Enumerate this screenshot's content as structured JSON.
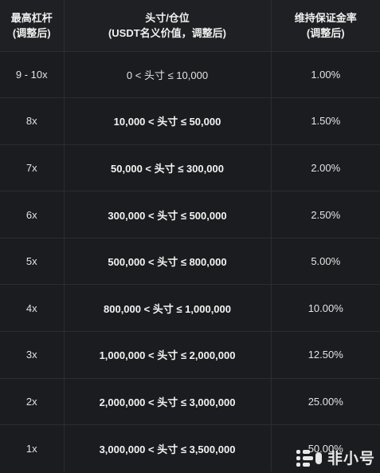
{
  "header": {
    "col1_line1": "最高杠杆",
    "col1_line2": "(调整后)",
    "col2_line1": "头寸/仓位",
    "col2_line2": "(USDT名义价值，调整后)",
    "col3_line1": "维持保证金率",
    "col3_line2": "(调整后)"
  },
  "rows": [
    {
      "leverage": "9 - 10x",
      "position": "0 < 头寸 ≤ 10,000",
      "margin": "1.00%"
    },
    {
      "leverage": "8x",
      "position": "10,000 < 头寸 ≤ 50,000",
      "margin": "1.50%"
    },
    {
      "leverage": "7x",
      "position": "50,000 < 头寸 ≤ 300,000",
      "margin": "2.00%"
    },
    {
      "leverage": "6x",
      "position": "300,000 < 头寸 ≤ 500,000",
      "margin": "2.50%"
    },
    {
      "leverage": "5x",
      "position": "500,000 < 头寸 ≤ 800,000",
      "margin": "5.00%"
    },
    {
      "leverage": "4x",
      "position": "800,000 < 头寸 ≤ 1,000,000",
      "margin": "10.00%"
    },
    {
      "leverage": "3x",
      "position": "1,000,000 < 头寸 ≤ 2,000,000",
      "margin": "12.50%"
    },
    {
      "leverage": "2x",
      "position": "2,000,000 < 头寸 ≤ 3,000,000",
      "margin": "25.00%"
    },
    {
      "leverage": "1x",
      "position": "3,000,000 < 头寸 ≤ 3,500,000",
      "margin": "50.00%"
    }
  ],
  "watermark": {
    "text": "非小号"
  }
}
